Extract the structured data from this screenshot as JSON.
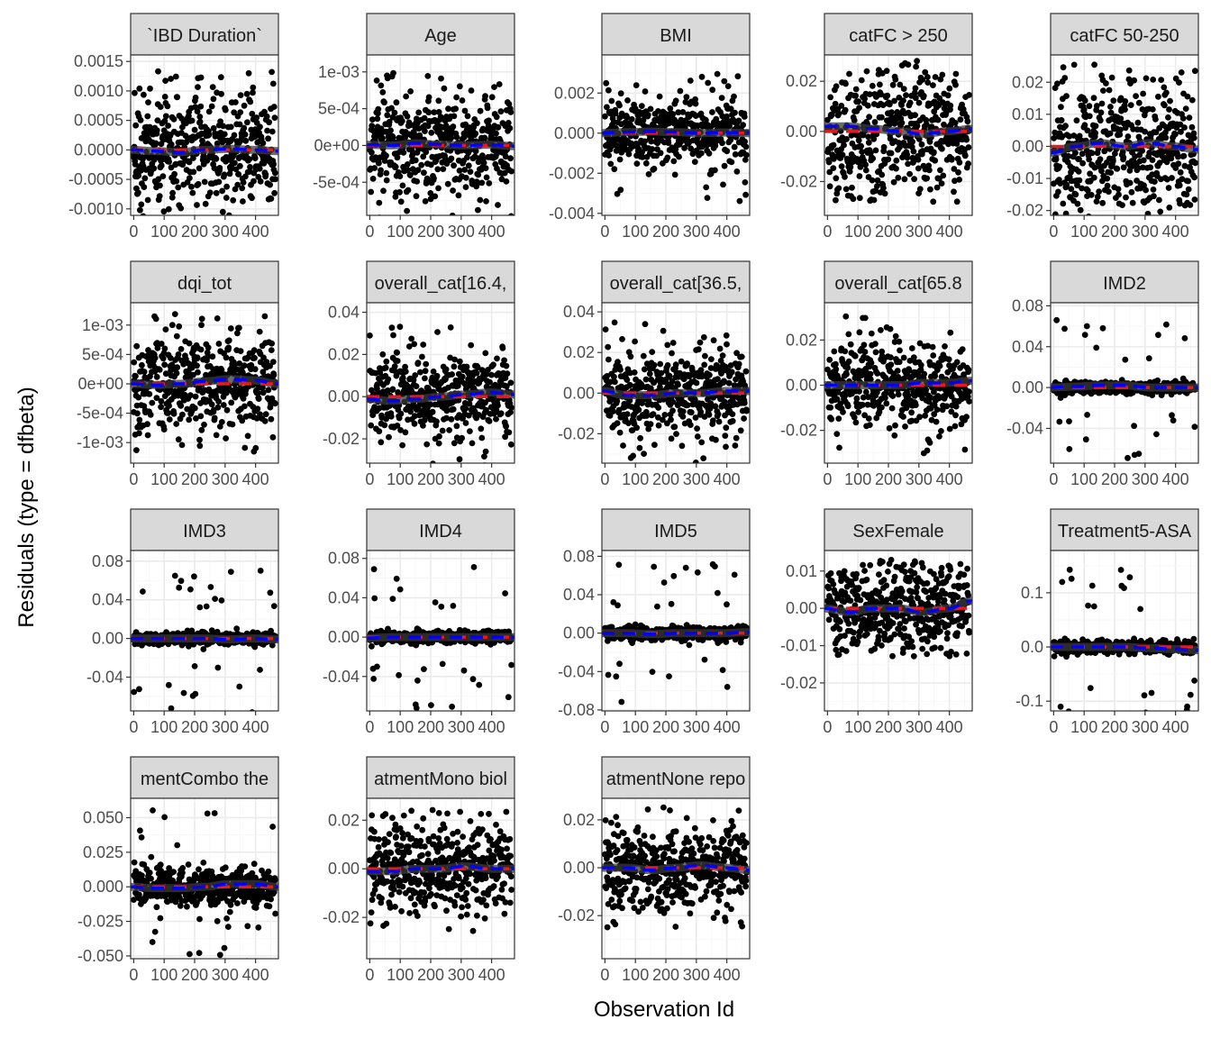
{
  "figure": {
    "xlabel": "Observation Id",
    "ylabel": "Residuals (type = dfbeta)"
  },
  "colors": {
    "point": "#000000",
    "reference_line": "#e41a1c",
    "smooth_line": "#0000ff",
    "smooth_band": "#3a3a3a",
    "strip_background": "#d9d9d9",
    "panel_border": "#333333",
    "grid_major": "#ebebeb",
    "grid_minor": "#f5f5f5"
  },
  "chart_data": [
    {
      "type": "scatter",
      "title": "`IBD Duration`",
      "xlim": [
        -10,
        475
      ],
      "ylim": [
        -0.00111,
        0.00161
      ],
      "x_ticks": [
        0,
        100,
        200,
        300,
        400
      ],
      "x_tick_labels": [
        "0",
        "100",
        "200",
        "300",
        "400"
      ],
      "y_ticks": [
        -0.001,
        -0.0005,
        0,
        0.0005,
        0.001,
        0.0015
      ],
      "y_tick_labels": [
        "-0.0010",
        "-0.0005",
        "0.0000",
        "0.0005",
        "0.0010",
        "0.0015"
      ],
      "spread": 0.0006,
      "extreme": 0.00142,
      "n_points": 470,
      "smooth": [
        0,
        -2e-05,
        -4e-05,
        0,
        2e-05,
        0,
        -2e-05
      ]
    },
    {
      "type": "scatter",
      "title": "Age",
      "xlim": [
        -10,
        475
      ],
      "ylim": [
        -0.00095,
        0.00123
      ],
      "x_ticks": [
        0,
        100,
        200,
        300,
        400
      ],
      "x_tick_labels": [
        "0",
        "100",
        "200",
        "300",
        "400"
      ],
      "y_ticks": [
        -0.0005,
        0,
        0.0005,
        0.001
      ],
      "y_tick_labels": [
        "-5e-04",
        "0e+00",
        "5e-04",
        "1e-03"
      ],
      "spread": 0.00045,
      "extreme": 0.00108,
      "n_points": 470,
      "smooth": [
        1e-05,
        0,
        3e-05,
        1e-05,
        0,
        1e-05,
        -1e-05
      ]
    },
    {
      "type": "scatter",
      "title": "BMI",
      "xlim": [
        -10,
        475
      ],
      "ylim": [
        -0.0041,
        0.0039
      ],
      "x_ticks": [
        0,
        100,
        200,
        300,
        400
      ],
      "x_tick_labels": [
        "0",
        "100",
        "200",
        "300",
        "400"
      ],
      "y_ticks": [
        -0.004,
        -0.002,
        0,
        0.002
      ],
      "y_tick_labels": [
        "-0.004",
        "-0.002",
        "0.000",
        "0.002"
      ],
      "spread": 0.0011,
      "extreme": 0.0036,
      "n_points": 470,
      "smooth": [
        0,
        5e-05,
        8e-05,
        5e-05,
        0,
        3e-05,
        0
      ]
    },
    {
      "type": "scatter",
      "title": "catFC > 250",
      "xlim": [
        -10,
        475
      ],
      "ylim": [
        -0.0335,
        0.0305
      ],
      "x_ticks": [
        0,
        100,
        200,
        300,
        400
      ],
      "x_tick_labels": [
        "0",
        "100",
        "200",
        "300",
        "400"
      ],
      "y_ticks": [
        -0.02,
        0,
        0.02
      ],
      "y_tick_labels": [
        "-0.02",
        "0.00",
        "0.02"
      ],
      "spread": 0.016,
      "extreme": 0.029,
      "n_points": 470,
      "smooth": [
        0.002,
        0.002,
        0.001,
        0,
        -0.001,
        0,
        0.001
      ]
    },
    {
      "type": "scatter",
      "title": "catFC 50-250",
      "xlim": [
        -10,
        475
      ],
      "ylim": [
        -0.0215,
        0.0285
      ],
      "x_ticks": [
        0,
        100,
        200,
        300,
        400
      ],
      "x_tick_labels": [
        "0",
        "100",
        "200",
        "300",
        "400"
      ],
      "y_ticks": [
        -0.02,
        -0.01,
        0,
        0.01,
        0.02
      ],
      "y_tick_labels": [
        "-0.02",
        "-0.01",
        "0.00",
        "0.01",
        "0.02"
      ],
      "spread": 0.013,
      "extreme": 0.027,
      "n_points": 470,
      "smooth": [
        -0.002,
        0,
        0.001,
        0,
        0.001,
        0,
        -0.001
      ]
    },
    {
      "type": "scatter",
      "title": "dqi_tot",
      "xlim": [
        -10,
        475
      ],
      "ylim": [
        -0.00135,
        0.00138
      ],
      "x_ticks": [
        0,
        100,
        200,
        300,
        400
      ],
      "x_tick_labels": [
        "0",
        "100",
        "200",
        "300",
        "400"
      ],
      "y_ticks": [
        -0.001,
        -0.0005,
        0,
        0.0005,
        0.001
      ],
      "y_tick_labels": [
        "-1e-03",
        "-5e-04",
        "0e+00",
        "5e-04",
        "1e-03"
      ],
      "spread": 0.0005,
      "extreme": 0.00125,
      "n_points": 470,
      "smooth": [
        0,
        -2e-05,
        0,
        4e-05,
        8e-05,
        6e-05,
        0
      ]
    },
    {
      "type": "scatter",
      "title": "overall_cat[16.4,",
      "xlim": [
        -10,
        475
      ],
      "ylim": [
        -0.0315,
        0.0445
      ],
      "x_ticks": [
        0,
        100,
        200,
        300,
        400
      ],
      "x_tick_labels": [
        "0",
        "100",
        "200",
        "300",
        "400"
      ],
      "y_ticks": [
        -0.02,
        0,
        0.02,
        0.04
      ],
      "y_tick_labels": [
        "-0.02",
        "0.00",
        "0.02",
        "0.04"
      ],
      "spread": 0.012,
      "extreme": 0.036,
      "n_points": 470,
      "smooth": [
        -0.001,
        -0.002,
        -0.001,
        0,
        0.001,
        0.002,
        0.001
      ]
    },
    {
      "type": "scatter",
      "title": "overall_cat[36.5,",
      "xlim": [
        -10,
        475
      ],
      "ylim": [
        -0.0345,
        0.0445
      ],
      "x_ticks": [
        0,
        100,
        200,
        300,
        400
      ],
      "x_tick_labels": [
        "0",
        "100",
        "200",
        "300",
        "400"
      ],
      "y_ticks": [
        -0.02,
        0,
        0.02,
        0.04
      ],
      "y_tick_labels": [
        "-0.02",
        "0.00",
        "0.02",
        "0.04"
      ],
      "spread": 0.012,
      "extreme": 0.037,
      "n_points": 470,
      "smooth": [
        0.001,
        -0.001,
        -0.001,
        0,
        0,
        0.001,
        0.001
      ]
    },
    {
      "type": "scatter",
      "title": "overall_cat[65.8",
      "xlim": [
        -10,
        475
      ],
      "ylim": [
        -0.0345,
        0.0365
      ],
      "x_ticks": [
        0,
        100,
        200,
        300,
        400
      ],
      "x_tick_labels": [
        "0",
        "100",
        "200",
        "300",
        "400"
      ],
      "y_ticks": [
        -0.02,
        0,
        0.02
      ],
      "y_tick_labels": [
        "-0.02",
        "0.00",
        "0.02"
      ],
      "spread": 0.011,
      "extreme": 0.033,
      "n_points": 470,
      "smooth": [
        0,
        0,
        0,
        0,
        0.001,
        0.001,
        0.002
      ]
    },
    {
      "type": "scatter",
      "title": "IMD2",
      "xlim": [
        -10,
        475
      ],
      "ylim": [
        -0.074,
        0.083
      ],
      "x_ticks": [
        0,
        100,
        200,
        300,
        400
      ],
      "x_tick_labels": [
        "0",
        "100",
        "200",
        "300",
        "400"
      ],
      "y_ticks": [
        -0.04,
        0,
        0.04,
        0.08
      ],
      "y_tick_labels": [
        "-0.04",
        "0.00",
        "0.04",
        "0.08"
      ],
      "spread": 0.004,
      "extreme": 0.073,
      "n_points": 470,
      "smooth": [
        0,
        0.001,
        0.002,
        0.002,
        0,
        0,
        0
      ]
    },
    {
      "type": "scatter",
      "title": "IMD3",
      "xlim": [
        -10,
        475
      ],
      "ylim": [
        -0.075,
        0.091
      ],
      "x_ticks": [
        0,
        100,
        200,
        300,
        400
      ],
      "x_tick_labels": [
        "0",
        "100",
        "200",
        "300",
        "400"
      ],
      "y_ticks": [
        -0.04,
        0,
        0.04,
        0.08
      ],
      "y_tick_labels": [
        "-0.04",
        "0.00",
        "0.04",
        "0.08"
      ],
      "spread": 0.004,
      "extreme": 0.081,
      "n_points": 470,
      "smooth": [
        0,
        0,
        0,
        0,
        -0.001,
        0,
        -0.001
      ]
    },
    {
      "type": "scatter",
      "title": "IMD4",
      "xlim": [
        -10,
        475
      ],
      "ylim": [
        -0.075,
        0.088
      ],
      "x_ticks": [
        0,
        100,
        200,
        300,
        400
      ],
      "x_tick_labels": [
        "0",
        "100",
        "200",
        "300",
        "400"
      ],
      "y_ticks": [
        -0.04,
        0,
        0.04,
        0.08
      ],
      "y_tick_labels": [
        "-0.04",
        "0.00",
        "0.04",
        "0.08"
      ],
      "spread": 0.004,
      "extreme": 0.076,
      "n_points": 470,
      "smooth": [
        -0.001,
        0,
        0,
        0,
        0,
        0,
        0
      ]
    },
    {
      "type": "scatter",
      "title": "IMD5",
      "xlim": [
        -10,
        475
      ],
      "ylim": [
        -0.081,
        0.086
      ],
      "x_ticks": [
        0,
        100,
        200,
        300,
        400
      ],
      "x_tick_labels": [
        "0",
        "100",
        "200",
        "300",
        "400"
      ],
      "y_ticks": [
        -0.08,
        -0.04,
        0,
        0.04,
        0.08
      ],
      "y_tick_labels": [
        "-0.08",
        "-0.04",
        "0.00",
        "0.04",
        "0.08"
      ],
      "spread": 0.005,
      "extreme": 0.076,
      "n_points": 470,
      "smooth": [
        0,
        0,
        -0.001,
        0,
        0,
        0,
        0.001
      ]
    },
    {
      "type": "scatter",
      "title": "SexFemale",
      "xlim": [
        -10,
        475
      ],
      "ylim": [
        -0.0275,
        0.0155
      ],
      "x_ticks": [
        0,
        100,
        200,
        300,
        400
      ],
      "x_tick_labels": [
        "0",
        "100",
        "200",
        "300",
        "400"
      ],
      "y_ticks": [
        -0.02,
        -0.01,
        0,
        0.01
      ],
      "y_tick_labels": [
        "-0.02",
        "-0.01",
        "0.00",
        "0.01"
      ],
      "spread": 0.008,
      "extreme": 0.013,
      "n_points": 470,
      "smooth": [
        0,
        -0.001,
        0,
        0,
        -0.001,
        0,
        0.002
      ]
    },
    {
      "type": "scatter",
      "title": "Treatment5-ASA",
      "xlim": [
        -10,
        475
      ],
      "ylim": [
        -0.118,
        0.178
      ],
      "x_ticks": [
        0,
        100,
        200,
        300,
        400
      ],
      "x_tick_labels": [
        "0",
        "100",
        "200",
        "300",
        "400"
      ],
      "y_ticks": [
        -0.1,
        0,
        0.1
      ],
      "y_tick_labels": [
        "-0.1",
        "0.0",
        "0.1"
      ],
      "spread": 0.008,
      "extreme": 0.156,
      "n_points": 470,
      "smooth": [
        0,
        0,
        0,
        0,
        -0.002,
        -0.004,
        -0.006
      ]
    },
    {
      "type": "scatter",
      "title": "mentCombo the",
      "xlim": [
        -10,
        475
      ],
      "ylim": [
        -0.052,
        0.064
      ],
      "x_ticks": [
        0,
        100,
        200,
        300,
        400
      ],
      "x_tick_labels": [
        "0",
        "100",
        "200",
        "300",
        "400"
      ],
      "y_ticks": [
        -0.05,
        -0.025,
        0,
        0.025,
        0.05
      ],
      "y_tick_labels": [
        "-0.050",
        "-0.025",
        "0.000",
        "0.025",
        "0.050"
      ],
      "spread": 0.009,
      "extreme": 0.06,
      "n_points": 470,
      "smooth": [
        0,
        -0.001,
        -0.001,
        0,
        0.002,
        0.002,
        0
      ]
    },
    {
      "type": "scatter",
      "title": "atmentMono biol",
      "xlim": [
        -10,
        475
      ],
      "ylim": [
        -0.037,
        0.029
      ],
      "x_ticks": [
        0,
        100,
        200,
        300,
        400
      ],
      "x_tick_labels": [
        "0",
        "100",
        "200",
        "300",
        "400"
      ],
      "y_ticks": [
        -0.02,
        0,
        0.02
      ],
      "y_tick_labels": [
        "-0.02",
        "0.00",
        "0.02"
      ],
      "spread": 0.012,
      "extreme": 0.026,
      "n_points": 470,
      "smooth": [
        -0.001,
        -0.001,
        0,
        0,
        0.001,
        0,
        0
      ]
    },
    {
      "type": "scatter",
      "title": "atmentNone repo",
      "xlim": [
        -10,
        475
      ],
      "ylim": [
        -0.038,
        0.029
      ],
      "x_ticks": [
        0,
        100,
        200,
        300,
        400
      ],
      "x_tick_labels": [
        "0",
        "100",
        "200",
        "300",
        "400"
      ],
      "y_ticks": [
        -0.02,
        0,
        0.02
      ],
      "y_tick_labels": [
        "-0.02",
        "0.00",
        "0.02"
      ],
      "spread": 0.011,
      "extreme": 0.027,
      "n_points": 470,
      "smooth": [
        0,
        0,
        -0.001,
        0,
        0.001,
        0,
        -0.001
      ]
    }
  ]
}
